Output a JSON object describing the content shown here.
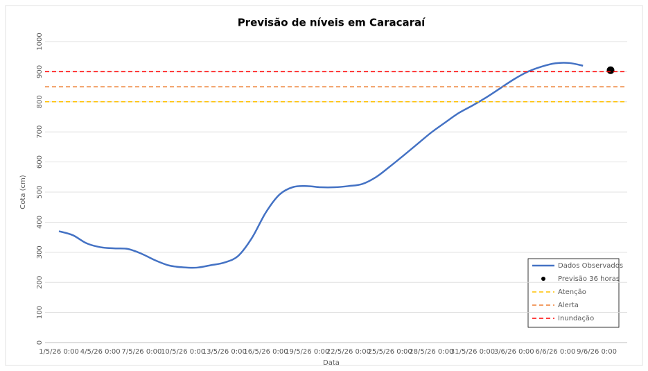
{
  "chart_data": {
    "type": "line",
    "title": "Previsão de níveis em Caracaraí",
    "x_label": "Data",
    "y_label": "Cota (cm)",
    "categories": [
      "1/5/26 0:00",
      null,
      null,
      "4/5/26 0:00",
      null,
      null,
      "7/5/26 0:00",
      null,
      null,
      "10/5/26 0:00",
      null,
      null,
      "13/5/26 0:00",
      null,
      null,
      "16/5/26 0:00",
      null,
      null,
      "19/5/26 0:00",
      null,
      null,
      "22/5/26 0:00",
      null,
      null,
      "25/5/26 0:00",
      null,
      null,
      "28/5/26 0:00",
      null,
      null,
      "31/5/26 0:00",
      null,
      null,
      "3/6/26 0:00",
      null,
      null,
      "6/6/26 0:00",
      null,
      null,
      "9/6/26 0:00",
      null
    ],
    "series": [
      {
        "name": "Dados Observados",
        "color": "#4472c4",
        "style": "line",
        "values": [
          370,
          357,
          330,
          317,
          313,
          311,
          295,
          273,
          256,
          250,
          249,
          257,
          266,
          288,
          348,
          432,
          492,
          517,
          520,
          516,
          516,
          520,
          527,
          550,
          585,
          622,
          660,
          698,
          731,
          763,
          788,
          815,
          845,
          875,
          900,
          917,
          928,
          929,
          920,
          null,
          null
        ]
      },
      {
        "name": "Previsão 36 horas",
        "color": "#000000",
        "style": "marker",
        "values": [
          null,
          null,
          null,
          null,
          null,
          null,
          null,
          null,
          null,
          null,
          null,
          null,
          null,
          null,
          null,
          null,
          null,
          null,
          null,
          null,
          null,
          null,
          null,
          null,
          null,
          null,
          null,
          null,
          null,
          null,
          null,
          null,
          null,
          null,
          null,
          null,
          null,
          null,
          null,
          null,
          905
        ]
      },
      {
        "name": "Atenção",
        "color": "#ffc000",
        "style": "hline",
        "value": 800
      },
      {
        "name": "Alerta",
        "color": "#ed7d31",
        "style": "hline",
        "value": 850
      },
      {
        "name": "Inundação",
        "color": "#ff0000",
        "style": "hline",
        "value": 900
      }
    ],
    "ylim": [
      0,
      1000
    ],
    "yticks": [
      0,
      100,
      200,
      300,
      400,
      500,
      600,
      700,
      800,
      900,
      1000
    ],
    "grid": true
  }
}
